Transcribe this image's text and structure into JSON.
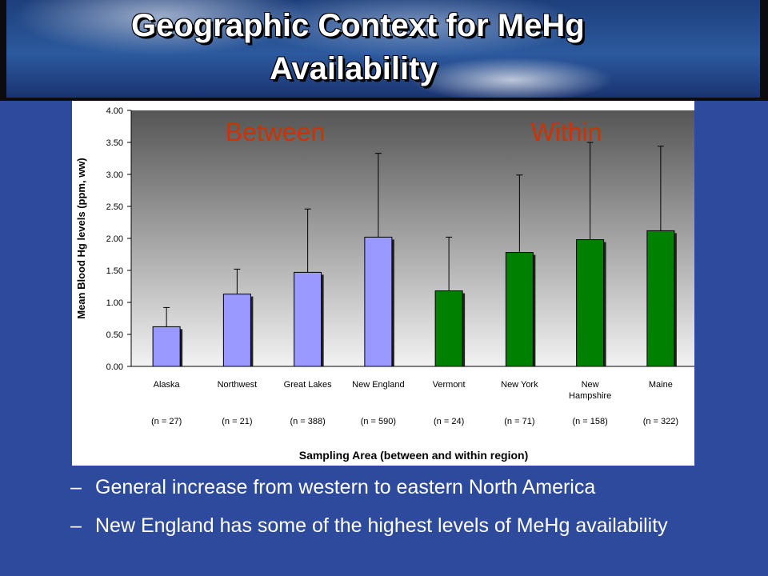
{
  "slide": {
    "title_line1": "Geographic Context for MeHg",
    "title_line2": "Availability",
    "bullets": [
      {
        "dash": "–",
        "text": "General increase from western to eastern North America"
      },
      {
        "dash": "–",
        "text": "New England has some of the highest levels of MeHg availability"
      }
    ]
  },
  "chart_data": {
    "type": "bar",
    "ylabel": "Mean Blood Hg levels (ppm, ww)",
    "xlabel": "Sampling Area (between and within region)",
    "ylim": [
      0,
      4
    ],
    "yticks": [
      "0.00",
      "0.50",
      "1.00",
      "1.50",
      "2.00",
      "2.50",
      "3.00",
      "3.50",
      "4.00"
    ],
    "annotations": [
      "Between",
      "Within"
    ],
    "categories": [
      {
        "name": [
          "Alaska"
        ],
        "n": "(n = 27)"
      },
      {
        "name": [
          "Northwest"
        ],
        "n": "(n = 21)"
      },
      {
        "name": [
          "Great Lakes"
        ],
        "n": "(n = 388)"
      },
      {
        "name": [
          "New England"
        ],
        "n": "(n = 590)"
      },
      {
        "name": [
          "Vermont"
        ],
        "n": "(n = 24)"
      },
      {
        "name": [
          "New York"
        ],
        "n": "(n = 71)"
      },
      {
        "name": [
          "New",
          "Hampshire"
        ],
        "n": "(n = 158)"
      },
      {
        "name": [
          "Maine"
        ],
        "n": "(n = 322)"
      }
    ],
    "values": [
      0.62,
      1.13,
      1.47,
      2.02,
      1.18,
      1.78,
      1.98,
      2.12
    ],
    "error_upper": [
      0.92,
      1.52,
      2.46,
      3.33,
      2.02,
      2.99,
      3.5,
      3.44
    ],
    "groups": [
      "Between",
      "Between",
      "Between",
      "Between",
      "Within",
      "Within",
      "Within",
      "Within"
    ],
    "colors": {
      "Between": "#9999ff",
      "Within": "#008000",
      "annotation": "#cc3300"
    }
  }
}
